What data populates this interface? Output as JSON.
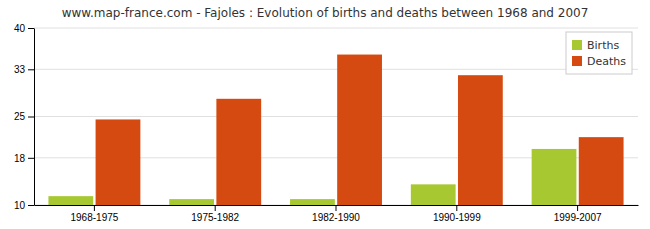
{
  "chart_data": {
    "type": "bar",
    "title": "www.map-france.com - Fajoles : Evolution of births and deaths between 1968 and 2007",
    "categories": [
      "1968-1975",
      "1975-1982",
      "1982-1990",
      "1990-1999",
      "1999-2007"
    ],
    "series": [
      {
        "name": "Births",
        "color": "#a8c832",
        "values": [
          11.5,
          11.0,
          11.0,
          13.5,
          19.5
        ]
      },
      {
        "name": "Deaths",
        "color": "#d44a10",
        "values": [
          24.5,
          28.0,
          35.5,
          32.0,
          21.5
        ]
      }
    ],
    "ylim": [
      10,
      40
    ],
    "yticks": [
      10,
      18,
      25,
      33,
      40
    ],
    "grid": true,
    "legend": "upper right"
  }
}
